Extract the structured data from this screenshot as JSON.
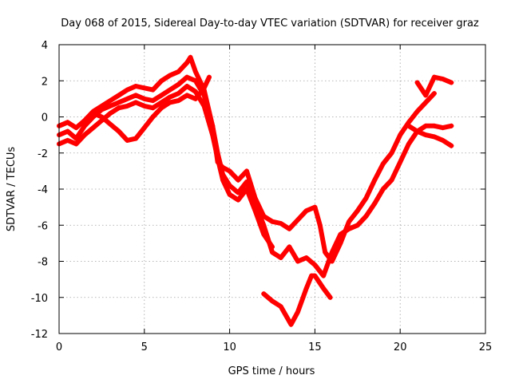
{
  "chart_data": {
    "type": "scatter",
    "title": "Day 068 of 2015, Sidereal Day-to-day VTEC variation (SDTVAR) for receiver graz",
    "xlabel": "GPS time / hours",
    "ylabel": "SDTVAR / TECUs",
    "xlim": [
      0,
      25
    ],
    "ylim": [
      -12,
      4
    ],
    "xticks": [
      0,
      5,
      10,
      15,
      20,
      25
    ],
    "yticks": [
      -12,
      -10,
      -8,
      -6,
      -4,
      -2,
      0,
      2,
      4
    ],
    "grid": true,
    "marker": "plus",
    "color": "#ff0000",
    "series": [
      {
        "x": [
          0.0,
          0.5,
          1.0,
          1.5,
          2.0,
          2.5,
          3.0,
          3.5,
          4.0,
          4.5,
          5.0,
          5.5,
          6.0,
          6.5,
          7.0,
          7.5,
          7.7,
          8.0,
          8.5,
          9.0,
          9.3,
          9.6,
          10.0,
          10.5,
          11.0,
          11.5,
          12.0,
          12.5,
          13.0,
          13.5,
          14.0,
          14.5,
          15.0,
          15.3,
          15.6,
          16.0,
          16.5,
          17.0,
          17.5,
          18.0,
          18.5,
          19.0,
          19.5,
          20.0,
          20.5,
          21.0,
          21.5,
          22.0
        ],
        "y": [
          -0.5,
          -0.3,
          -0.6,
          -0.2,
          0.3,
          0.6,
          0.9,
          1.2,
          1.5,
          1.7,
          1.6,
          1.5,
          2.0,
          2.3,
          2.5,
          3.0,
          3.3,
          2.5,
          1.5,
          -0.5,
          -2.5,
          -2.8,
          -3.0,
          -3.5,
          -3.0,
          -4.5,
          -5.5,
          -5.8,
          -5.9,
          -6.2,
          -5.7,
          -5.2,
          -5.0,
          -6.0,
          -7.5,
          -8.0,
          -7.0,
          -5.8,
          -5.2,
          -4.5,
          -3.5,
          -2.6,
          -2.0,
          -1.0,
          -0.3,
          0.3,
          0.8,
          1.3
        ]
      },
      {
        "x": [
          0.0,
          0.5,
          1.0,
          1.5,
          2.0,
          2.5,
          3.0,
          3.5,
          4.0,
          4.5,
          5.0,
          5.5,
          6.0,
          6.5,
          7.0,
          7.5,
          8.0,
          8.5,
          9.0,
          9.3,
          9.6,
          10.0,
          10.5,
          11.0,
          11.5,
          12.0,
          12.5,
          13.0,
          13.5,
          14.0,
          14.5,
          15.0,
          15.5,
          16.0,
          16.5,
          17.0,
          17.5,
          18.0,
          18.5,
          19.0,
          19.5,
          20.0,
          20.5,
          21.0,
          21.5,
          22.0,
          22.5,
          23.0
        ],
        "y": [
          -1.0,
          -0.8,
          -1.2,
          -0.5,
          0.0,
          0.4,
          0.6,
          0.8,
          1.0,
          1.2,
          1.0,
          0.9,
          1.2,
          1.5,
          1.8,
          2.2,
          2.0,
          1.2,
          -0.5,
          -2.0,
          -3.2,
          -3.8,
          -4.2,
          -3.6,
          -4.8,
          -6.0,
          -7.5,
          -7.8,
          -7.2,
          -8.0,
          -7.8,
          -8.2,
          -8.8,
          -7.5,
          -6.5,
          -6.2,
          -6.0,
          -5.5,
          -4.8,
          -4.0,
          -3.5,
          -2.5,
          -1.5,
          -0.8,
          -0.5,
          -0.5,
          -0.6,
          -0.5
        ]
      },
      {
        "x": [
          0.0,
          0.5,
          1.0,
          1.5,
          2.0,
          2.5,
          3.0,
          3.5,
          4.0,
          4.5,
          5.0,
          5.5,
          6.0,
          6.5,
          7.0,
          7.5,
          8.0,
          8.5,
          9.0,
          9.3,
          9.6,
          10.0,
          10.5,
          11.0,
          11.5,
          12.0,
          12.5
        ],
        "y": [
          -1.5,
          -1.3,
          -1.5,
          -1.0,
          -0.6,
          -0.2,
          0.2,
          0.5,
          0.6,
          0.8,
          0.6,
          0.5,
          0.8,
          1.1,
          1.3,
          1.7,
          1.4,
          0.6,
          -1.0,
          -2.3,
          -3.5,
          -4.3,
          -4.6,
          -4.0,
          -5.2,
          -6.5,
          -7.2
        ]
      },
      {
        "x": [
          2.0,
          2.5,
          3.0,
          3.5,
          4.0,
          4.5,
          5.0,
          5.5,
          6.0,
          6.5,
          7.0,
          7.5,
          8.0,
          8.5,
          8.8
        ],
        "y": [
          0.2,
          0.0,
          -0.4,
          -0.8,
          -1.3,
          -1.2,
          -0.6,
          0.0,
          0.5,
          0.8,
          0.9,
          1.2,
          1.0,
          1.6,
          2.2
        ]
      },
      {
        "x": [
          12.0,
          12.5,
          13.0,
          13.3,
          13.6,
          14.0,
          14.5,
          14.8,
          15.0,
          15.5,
          15.9
        ],
        "y": [
          -9.8,
          -10.2,
          -10.5,
          -11.0,
          -11.5,
          -10.8,
          -9.5,
          -8.8,
          -8.8,
          -9.5,
          -10.0
        ]
      },
      {
        "x": [
          20.5,
          21.0,
          21.5,
          22.0,
          22.5,
          23.0
        ],
        "y": [
          -0.5,
          -0.8,
          -1.0,
          -1.1,
          -1.3,
          -1.6
        ]
      },
      {
        "x": [
          21.0,
          21.5,
          22.0,
          22.5,
          23.0
        ],
        "y": [
          1.9,
          1.2,
          2.2,
          2.1,
          1.9
        ]
      }
    ]
  }
}
